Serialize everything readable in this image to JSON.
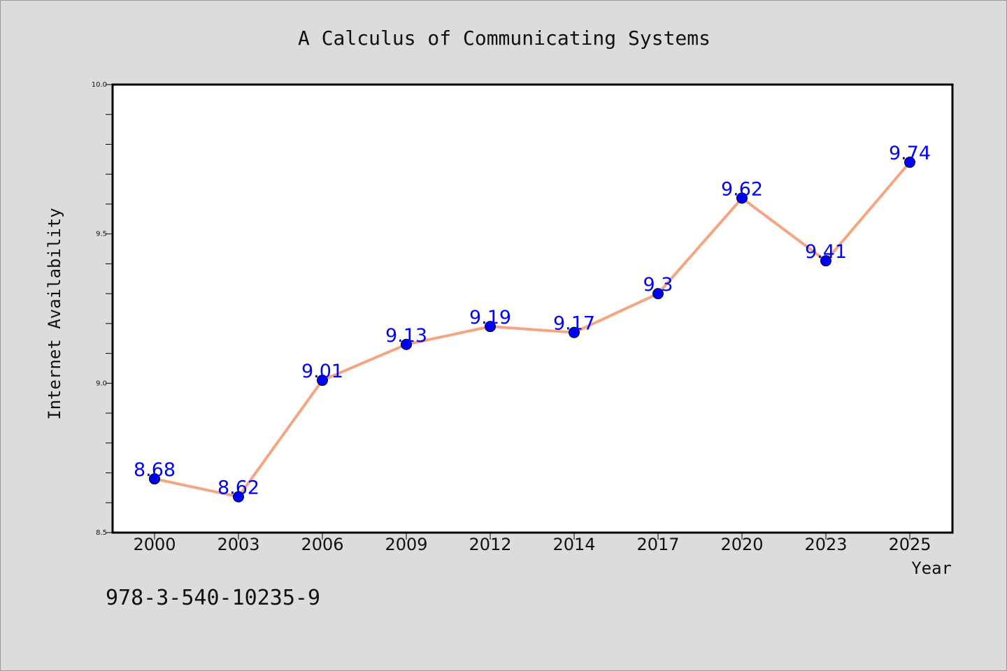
{
  "chart_data": {
    "type": "line",
    "title": "A Calculus of Communicating Systems",
    "xlabel": "Year",
    "ylabel": "Internet Availability",
    "categories": [
      "2000",
      "2003",
      "2006",
      "2009",
      "2012",
      "2014",
      "2017",
      "2020",
      "2023",
      "2025"
    ],
    "series": [
      {
        "values": [
          8.68,
          8.62,
          9.01,
          9.13,
          9.19,
          9.17,
          9.3,
          9.62,
          9.41,
          9.74
        ]
      }
    ],
    "data_labels": [
      "8.68",
      "8.62",
      "9.01",
      "9.13",
      "9.19",
      "9.17",
      "9.3",
      "9.62",
      "9.41",
      "9.74"
    ],
    "ylim": [
      8.5,
      10.0
    ],
    "yticks": [
      "8.5",
      "9.0",
      "9.5",
      "10.0"
    ],
    "grid": false,
    "legend": "none",
    "colors": {
      "line": "#f4a582",
      "marker": "#0000ff",
      "data_label": "#0000ff",
      "background": "#dcdcdc",
      "plot_area": "#ffffff"
    }
  },
  "footnote": "978-3-540-10235-9"
}
